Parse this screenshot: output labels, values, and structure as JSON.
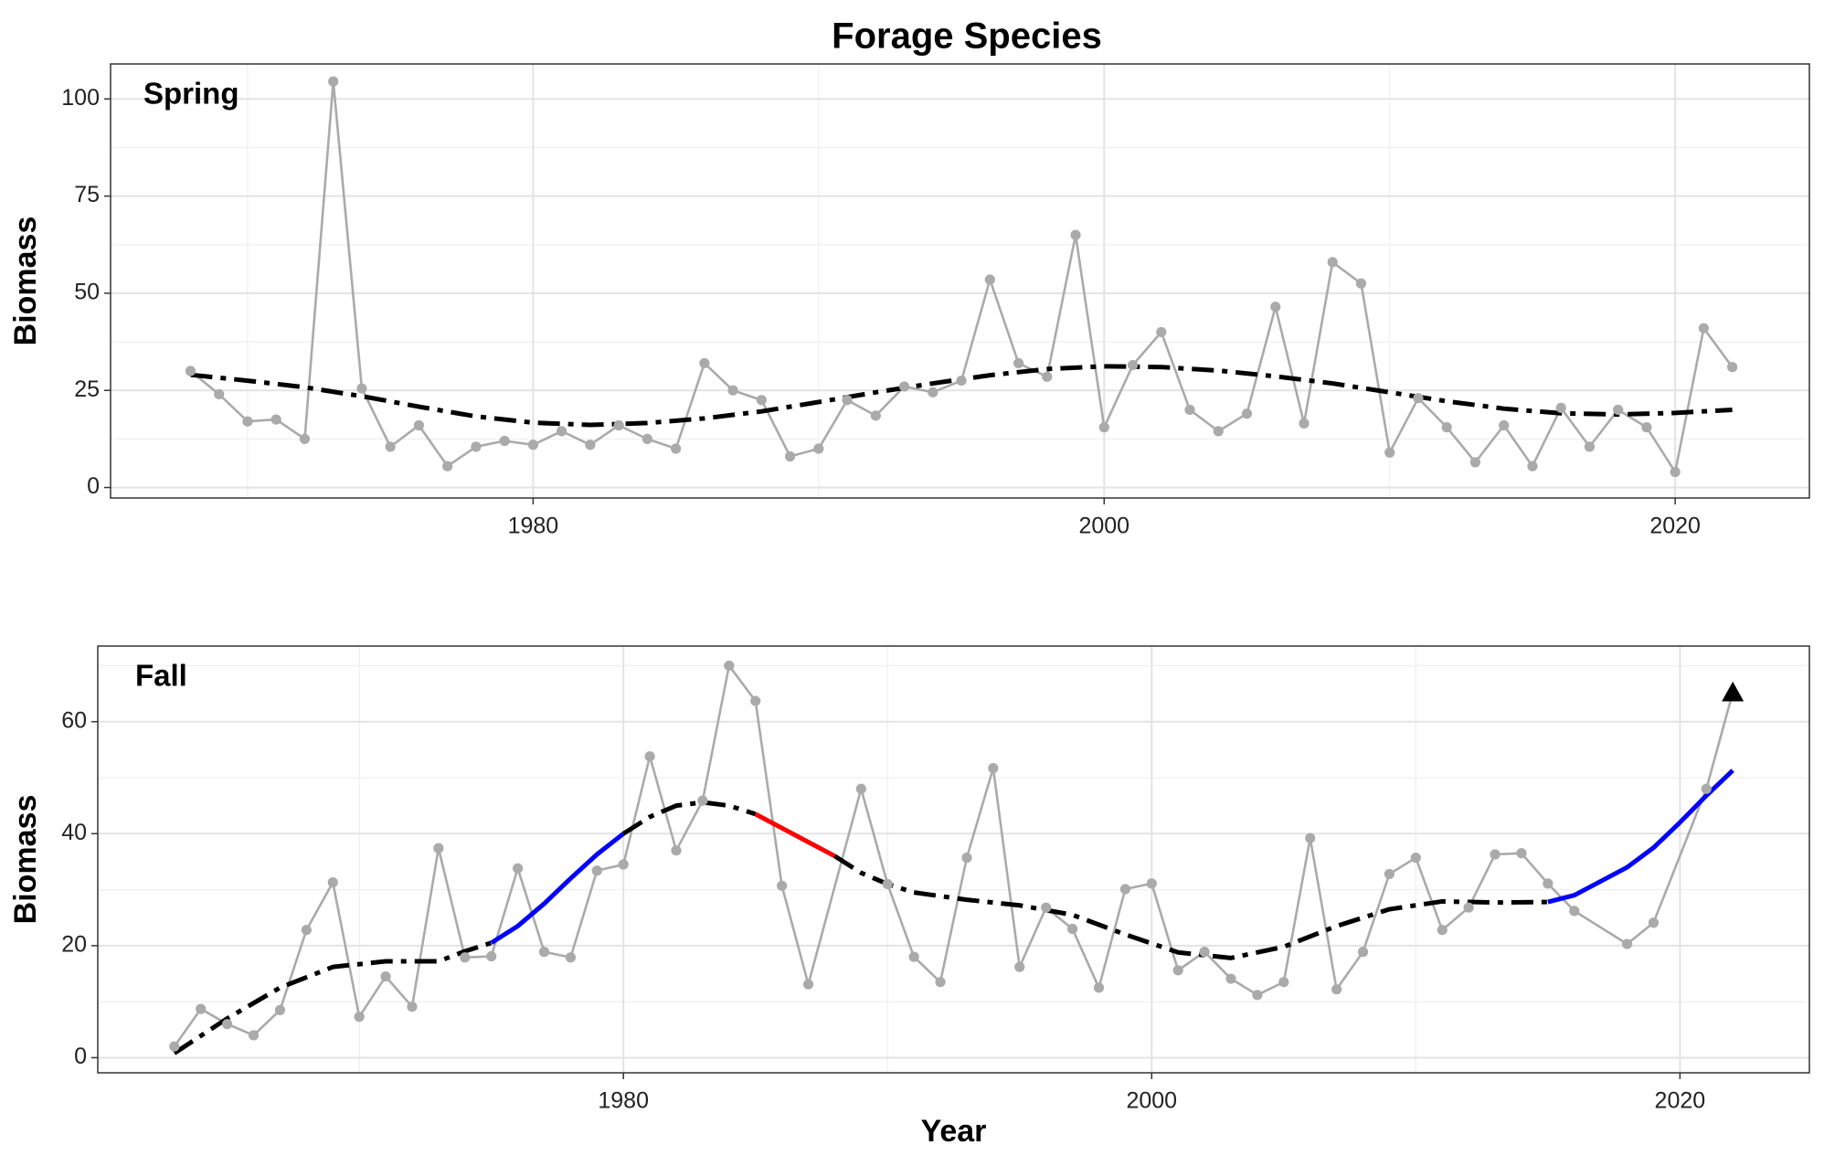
{
  "title": "Forage Species",
  "chart_data": [
    {
      "type": "line",
      "panel_label": "Spring",
      "ylabel": "Biomass",
      "color": "#aaaaaa",
      "x": [
        1968,
        1969,
        1970,
        1971,
        1972,
        1973,
        1974,
        1975,
        1976,
        1977,
        1978,
        1979,
        1980,
        1981,
        1982,
        1983,
        1984,
        1985,
        1986,
        1987,
        1988,
        1989,
        1990,
        1991,
        1992,
        1993,
        1994,
        1995,
        1996,
        1997,
        1998,
        1999,
        2000,
        2001,
        2002,
        2003,
        2004,
        2005,
        2006,
        2007,
        2008,
        2009,
        2010,
        2011,
        2012,
        2013,
        2014,
        2015,
        2016,
        2017,
        2018,
        2019,
        2020,
        2021,
        2022
      ],
      "values": [
        30,
        24,
        17,
        17.5,
        12.5,
        104.5,
        25.5,
        10.5,
        16,
        5.5,
        10.5,
        12,
        11,
        14.5,
        11,
        16,
        12.5,
        10,
        32,
        25,
        22.5,
        8,
        10,
        22.5,
        18.5,
        26,
        24.5,
        27.5,
        53.5,
        32,
        28.5,
        65,
        15.5,
        31.5,
        40,
        20,
        14.5,
        19,
        46.5,
        16.5,
        58,
        52.5,
        9,
        23,
        15.5,
        6.5,
        16,
        5.5,
        20.5,
        10.5,
        20,
        15.5,
        4,
        41,
        31
      ],
      "trend": [
        {
          "color": "#000000",
          "dashed": true,
          "x": [
            1968,
            1970,
            1972,
            1974,
            1976,
            1978,
            1980,
            1982,
            1984,
            1986,
            1988,
            1990,
            1992,
            1994,
            1996,
            1998,
            2000,
            2002,
            2004,
            2006,
            2008,
            2010,
            2012,
            2014,
            2016,
            2018,
            2020,
            2022
          ],
          "values": [
            29,
            27.5,
            25.8,
            23.5,
            20.8,
            18.3,
            16.7,
            16.1,
            16.6,
            17.8,
            19.6,
            22,
            24.5,
            26.8,
            28.9,
            30.5,
            31.2,
            31,
            30.1,
            28.6,
            26.8,
            24.5,
            22.2,
            20.3,
            19.1,
            18.8,
            19.2,
            20
          ]
        }
      ],
      "xlim": [
        1965.2,
        2024.7
      ],
      "ylim": [
        -2.7,
        109
      ],
      "xticks": [
        1980,
        2000,
        2020
      ],
      "yticks": [
        0,
        25,
        50,
        75,
        100
      ],
      "x_minor_ticks": [
        1970,
        1990,
        2010
      ],
      "y_minor_ticks": [
        12.5,
        37.5,
        62.5,
        87.5
      ],
      "grid": true
    },
    {
      "type": "line",
      "panel_label": "Fall",
      "ylabel": "Biomass",
      "xlabel": "Year",
      "color": "#aaaaaa",
      "last_point_shape": "triangle",
      "x": [
        1963,
        1964,
        1965,
        1966,
        1967,
        1968,
        1969,
        1970,
        1971,
        1972,
        1973,
        1974,
        1975,
        1976,
        1977,
        1978,
        1979,
        1980,
        1981,
        1982,
        1983,
        1984,
        1985,
        1986,
        1987,
        1989,
        1990,
        1991,
        1992,
        1993,
        1994,
        1995,
        1996,
        1997,
        1998,
        1999,
        2000,
        2001,
        2002,
        2003,
        2004,
        2005,
        2006,
        2007,
        2008,
        2009,
        2010,
        2011,
        2012,
        2013,
        2014,
        2015,
        2016,
        2018,
        2019,
        2021,
        2022
      ],
      "values": [
        2,
        8.7,
        6,
        4,
        8.5,
        22.8,
        31.3,
        7.3,
        14.5,
        9.1,
        37.4,
        17.9,
        18.1,
        33.8,
        18.9,
        17.9,
        33.4,
        34.5,
        53.8,
        37,
        45.9,
        70,
        63.7,
        30.7,
        13.1,
        48,
        31,
        18,
        13.5,
        35.7,
        51.7,
        16.2,
        26.8,
        23,
        12.5,
        30.1,
        31.1,
        15.6,
        18.9,
        14.1,
        11.2,
        13.5,
        39.2,
        12.2,
        18.9,
        32.8,
        35.7,
        22.8,
        26.8,
        36.3,
        36.5,
        31.1,
        26.2,
        20.3,
        24.1,
        48,
        65.2
      ],
      "trend": [
        {
          "color": "#000000",
          "dashed": true,
          "x": [
            1963,
            1965,
            1967,
            1969,
            1971,
            1973,
            1974,
            1975
          ],
          "values": [
            0.8,
            7,
            12.5,
            16.2,
            17.2,
            17.2,
            19,
            20.5
          ]
        },
        {
          "color": "#0000ff",
          "dashed": false,
          "x": [
            1975,
            1976,
            1977,
            1978,
            1979,
            1980
          ],
          "values": [
            20.5,
            23.5,
            27.5,
            32,
            36.3,
            40
          ]
        },
        {
          "color": "#000000",
          "dashed": true,
          "x": [
            1980,
            1981,
            1982,
            1983,
            1984,
            1985
          ],
          "values": [
            40,
            43,
            45,
            45.6,
            45,
            43.5
          ]
        },
        {
          "color": "#ff0000",
          "dashed": false,
          "x": [
            1985,
            1986,
            1987,
            1988
          ],
          "values": [
            43.5,
            41,
            38.5,
            36
          ]
        },
        {
          "color": "#000000",
          "dashed": true,
          "x": [
            1988,
            1989,
            1990,
            1991,
            1993,
            1995,
            1997,
            1999,
            2001,
            2003,
            2005,
            2007,
            2009,
            2011,
            2013,
            2015
          ],
          "values": [
            36,
            33,
            31,
            29.5,
            28.2,
            27.2,
            25.5,
            22,
            18.8,
            17.8,
            19.8,
            23.5,
            26.5,
            27.9,
            27.7,
            27.8
          ]
        },
        {
          "color": "#0000ff",
          "dashed": false,
          "x": [
            2015,
            2016,
            2017,
            2018,
            2019,
            2020,
            2021,
            2022
          ],
          "values": [
            27.8,
            29,
            31.5,
            34,
            37.5,
            42,
            46.8,
            51.3
          ]
        }
      ],
      "xlim": [
        1960.1,
        2024.9
      ],
      "ylim": [
        -2.7,
        73.5
      ],
      "xticks": [
        1980,
        2000,
        2020
      ],
      "yticks": [
        0,
        20,
        40,
        60
      ],
      "x_minor_ticks": [
        1970,
        1990,
        2010
      ],
      "y_minor_ticks": [
        10,
        30,
        50,
        70
      ],
      "grid": true
    }
  ]
}
